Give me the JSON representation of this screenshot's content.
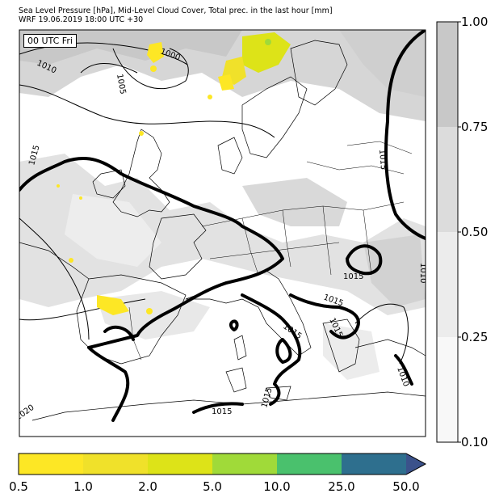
{
  "title": {
    "line1": "Sea Level Pressure [hPa], Mid-Level Cloud Cover, Total prec. in the last hour [mm]",
    "line2": "WRF 19.06.2019 18:00 UTC +30"
  },
  "map": {
    "time_label": "00 UTC Fri",
    "isobar_labels": [
      "1010",
      "1000",
      "1005",
      "1015",
      "1015",
      "1015",
      "1015",
      "1015",
      "1015",
      "1015",
      "1015",
      "1010",
      "1020",
      "1010"
    ]
  },
  "cloud_colorbar": {
    "labels": [
      "1.00",
      "0.75",
      "0.50",
      "0.25",
      "0.10"
    ],
    "colors": [
      "#c8c8c8",
      "#dcdcdc",
      "#ececec",
      "#f8f8f8"
    ]
  },
  "precip_colorbar": {
    "labels": [
      "0.5",
      "1.0",
      "2.0",
      "5.0",
      "10.0",
      "25.0",
      "50.0"
    ],
    "colors": [
      "#fde725",
      "#f0e12a",
      "#dde318",
      "#a0da39",
      "#4ac16d",
      "#2e6f8e",
      "#3b528b",
      "#440154"
    ]
  }
}
